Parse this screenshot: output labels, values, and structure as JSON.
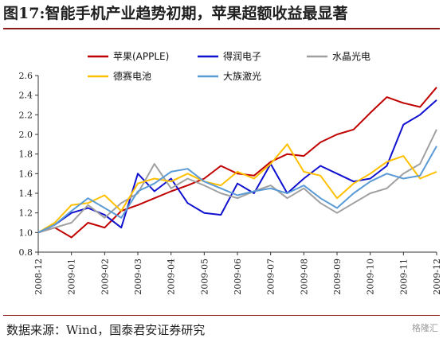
{
  "title": "图17:智能手机产业趋势初期，苹果超额收益最显著",
  "source": "数据来源：Wind，国泰君安证券研究",
  "watermark": "格隆汇",
  "chart_data": {
    "type": "line",
    "title": "",
    "xlabel": "",
    "ylabel": "",
    "ylim": [
      0.8,
      2.6
    ],
    "yticks": [
      "0.8",
      "1.0",
      "1.2",
      "1.4",
      "1.6",
      "1.8",
      "2.0",
      "2.2",
      "2.4",
      "2.6"
    ],
    "xticks": [
      "2008-12",
      "2009-01",
      "2009-02",
      "2009-03",
      "2009-04",
      "2009-05",
      "2009-06",
      "2009-07",
      "2009-08",
      "2009-09",
      "2009-10",
      "2009-11",
      "2009-12"
    ],
    "grid": false,
    "legend_position": "top",
    "x": [
      "2008-12",
      "2008-12-15",
      "2009-01",
      "2009-01-15",
      "2009-02",
      "2009-02-15",
      "2009-03",
      "2009-03-15",
      "2009-04",
      "2009-04-15",
      "2009-05",
      "2009-05-15",
      "2009-06",
      "2009-06-15",
      "2009-07",
      "2009-07-15",
      "2009-08",
      "2009-08-15",
      "2009-09",
      "2009-09-15",
      "2009-10",
      "2009-10-15",
      "2009-11",
      "2009-11-15",
      "2009-12"
    ],
    "series": [
      {
        "name": "苹果(APPLE)",
        "color": "#c00000",
        "values": [
          1.0,
          1.05,
          0.95,
          1.1,
          1.05,
          1.22,
          1.28,
          1.35,
          1.42,
          1.48,
          1.55,
          1.68,
          1.6,
          1.58,
          1.72,
          1.8,
          1.78,
          1.92,
          2.0,
          2.05,
          2.22,
          2.38,
          2.32,
          2.28,
          2.48
        ]
      },
      {
        "name": "得润电子",
        "color": "#1010d0",
        "values": [
          1.0,
          1.08,
          1.2,
          1.25,
          1.18,
          1.05,
          1.6,
          1.42,
          1.55,
          1.3,
          1.2,
          1.18,
          1.5,
          1.4,
          1.7,
          1.4,
          1.55,
          1.68,
          1.6,
          1.52,
          1.55,
          1.68,
          2.1,
          2.2,
          2.35
        ]
      },
      {
        "name": "水晶光电",
        "color": "#a0a0a0",
        "values": [
          1.0,
          1.05,
          1.1,
          1.28,
          1.15,
          1.3,
          1.4,
          1.7,
          1.45,
          1.55,
          1.48,
          1.4,
          1.35,
          1.42,
          1.48,
          1.35,
          1.45,
          1.3,
          1.2,
          1.3,
          1.4,
          1.45,
          1.6,
          1.7,
          2.05
        ]
      },
      {
        "name": "德赛电池",
        "color": "#ffc000",
        "values": [
          1.0,
          1.1,
          1.28,
          1.3,
          1.38,
          1.22,
          1.5,
          1.55,
          1.52,
          1.6,
          1.52,
          1.48,
          1.62,
          1.55,
          1.7,
          1.9,
          1.62,
          1.58,
          1.35,
          1.5,
          1.6,
          1.72,
          1.78,
          1.55,
          1.62
        ]
      },
      {
        "name": "大族激光",
        "color": "#5b9bd5",
        "values": [
          1.0,
          1.08,
          1.22,
          1.35,
          1.25,
          1.15,
          1.42,
          1.5,
          1.62,
          1.65,
          1.52,
          1.45,
          1.38,
          1.42,
          1.45,
          1.4,
          1.48,
          1.35,
          1.25,
          1.4,
          1.52,
          1.6,
          1.55,
          1.58,
          1.88
        ]
      }
    ]
  }
}
